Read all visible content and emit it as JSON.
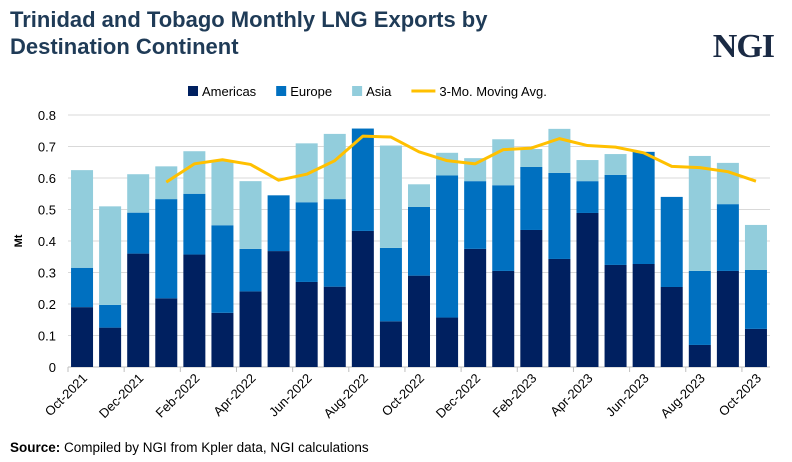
{
  "title": "Trinidad and Tobago Monthly LNG Exports by Destination Continent",
  "logo": "NGI",
  "source_label": "Source:",
  "source_text": " Compiled by NGI from Kpler data, NGI calculations",
  "chart_data": {
    "type": "bar",
    "stacked": true,
    "title": "Trinidad and Tobago Monthly LNG Exports by Destination Continent",
    "ylabel": "Mt",
    "xlabel": "",
    "ylim": [
      0,
      0.8
    ],
    "yticks": [
      "0",
      "0.1",
      "0.2",
      "0.3",
      "0.4",
      "0.5",
      "0.6",
      "0.7",
      "0.8"
    ],
    "grid": true,
    "legend": "top",
    "categories": [
      "Oct-2021",
      "Nov-2021",
      "Dec-2021",
      "Jan-2022",
      "Feb-2022",
      "Mar-2022",
      "Apr-2022",
      "May-2022",
      "Jun-2022",
      "Jul-2022",
      "Aug-2022",
      "Sep-2022",
      "Oct-2022",
      "Nov-2022",
      "Dec-2022",
      "Jan-2023",
      "Feb-2023",
      "Mar-2023",
      "Apr-2023",
      "May-2023",
      "Jun-2023",
      "Jul-2023",
      "Aug-2023",
      "Sep-2023",
      "Oct-2023"
    ],
    "series": [
      {
        "name": "Americas",
        "type": "bar",
        "color": "#002060",
        "values": [
          0.19,
          0.125,
          0.36,
          0.218,
          0.357,
          0.172,
          0.24,
          0.368,
          0.27,
          0.255,
          0.432,
          0.145,
          0.29,
          0.157,
          0.375,
          0.305,
          0.435,
          0.343,
          0.489,
          0.324,
          0.327,
          0.254,
          0.07,
          0.305,
          0.121
        ]
      },
      {
        "name": "Europe",
        "type": "bar",
        "color": "#0070c0",
        "values": [
          0.125,
          0.072,
          0.13,
          0.315,
          0.193,
          0.278,
          0.135,
          0.177,
          0.253,
          0.278,
          0.325,
          0.233,
          0.218,
          0.451,
          0.215,
          0.272,
          0.2,
          0.273,
          0.101,
          0.286,
          0.356,
          0.286,
          0.235,
          0.212,
          0.187
        ]
      },
      {
        "name": "Asia",
        "type": "bar",
        "color": "#92cddc",
        "values": [
          0.31,
          0.313,
          0.122,
          0.104,
          0.135,
          0.205,
          0.215,
          0,
          0.187,
          0.207,
          0,
          0.325,
          0.072,
          0.072,
          0.073,
          0.146,
          0.057,
          0.14,
          0.067,
          0.066,
          0,
          0,
          0.365,
          0.131,
          0.143
        ]
      },
      {
        "name": "3-Mo. Moving Avg.",
        "type": "line",
        "color": "#ffc000",
        "values": [
          null,
          null,
          null,
          0.587,
          0.645,
          0.658,
          0.643,
          0.593,
          0.612,
          0.655,
          0.733,
          0.73,
          0.683,
          0.655,
          0.645,
          0.69,
          0.695,
          0.725,
          0.703,
          0.698,
          0.68,
          0.637,
          0.633,
          0.62,
          0.59
        ]
      }
    ]
  }
}
